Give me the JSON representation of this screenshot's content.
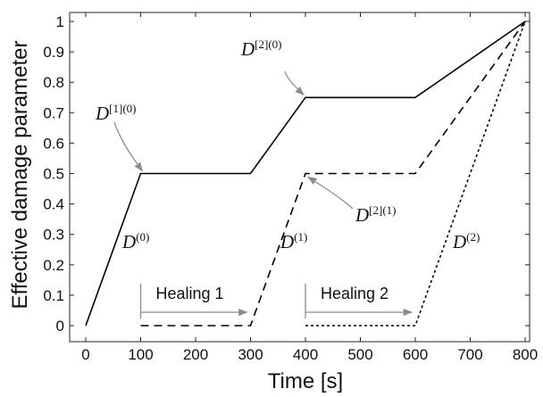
{
  "chart_data": {
    "type": "line",
    "xlabel": "Time [s]",
    "ylabel": "Effective damage parameter",
    "xlim": [
      0,
      800
    ],
    "ylim": [
      0,
      1
    ],
    "xticks": [
      "0",
      "100",
      "200",
      "300",
      "400",
      "500",
      "600",
      "700",
      "800"
    ],
    "yticks": [
      "0",
      "0.1",
      "0.2",
      "0.3",
      "0.4",
      "0.5",
      "0.6",
      "0.7",
      "0.8",
      "0.9",
      "1"
    ],
    "grid": false,
    "series": [
      {
        "name": "D(0)",
        "label": "D",
        "sup": "(0)",
        "style": "solid",
        "x": [
          0,
          100,
          300,
          400,
          600,
          800
        ],
        "y": [
          0,
          0.5,
          0.5,
          0.75,
          0.75,
          1.0
        ]
      },
      {
        "name": "D(1)",
        "label": "D",
        "sup": "(1)",
        "style": "dashed",
        "x": [
          100,
          300,
          400,
          600,
          800
        ],
        "y": [
          0,
          0,
          0.5,
          0.5,
          1.0
        ]
      },
      {
        "name": "D(2)",
        "label": "D",
        "sup": "(2)",
        "style": "dotted",
        "x": [
          400,
          600,
          800
        ],
        "y": [
          0,
          0,
          1.0
        ]
      }
    ],
    "annotations": [
      {
        "base": "D",
        "sup": "[1](0)",
        "target": [
          100,
          0.5
        ]
      },
      {
        "base": "D",
        "sup": "[2](0)",
        "target": [
          400,
          0.75
        ]
      },
      {
        "base": "D",
        "sup": "[2](1)",
        "target": [
          400,
          0.5
        ]
      }
    ],
    "healing": [
      {
        "label": "Healing 1",
        "x_start": 100,
        "x_end": 300
      },
      {
        "label": "Healing 2",
        "x_start": 400,
        "x_end": 600
      }
    ]
  }
}
